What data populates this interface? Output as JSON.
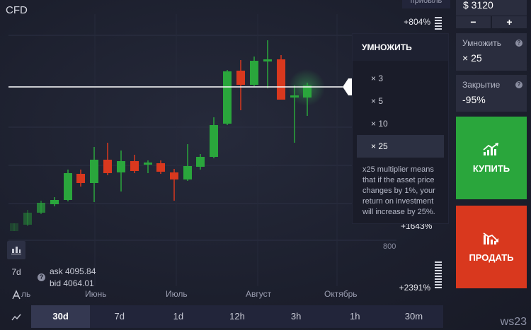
{
  "app_title": "CFD",
  "top_profit_label": "прибыль",
  "investment": {
    "value": "$ 3120",
    "minus": "−",
    "plus": "+"
  },
  "multiplier_field": {
    "label": "Умножить",
    "value": "× 25",
    "help": "?"
  },
  "close_field": {
    "label": "Закрытие",
    "value": "-95%",
    "help": "?"
  },
  "buy_button": {
    "label": "КУПИТЬ",
    "color": "#2aa63c"
  },
  "sell_button": {
    "label": "ПРОДАТЬ",
    "color": "#d9381e"
  },
  "multiplier_dropdown": {
    "title": "УМНОЖИТЬ",
    "options": [
      "× 3",
      "× 5",
      "× 10",
      "× 25"
    ],
    "selected": "× 25",
    "description": "x25 multiplier means that if the asset price changes by 1%, your return on investment will increase by 25%."
  },
  "scale_labels": {
    "top": "+804%",
    "middle": "+1643%",
    "bottom": "+2391%"
  },
  "grid_label": "800",
  "ask_bid": {
    "help": "?",
    "ask": "ask 4095.84",
    "bid": "bid 4064.01"
  },
  "left_tools": [
    {
      "name": "chart-type-icon",
      "label": ""
    },
    {
      "name": "period-7d",
      "label": "7d"
    },
    {
      "name": "drawing-icon",
      "label": ""
    },
    {
      "name": "indicator-icon",
      "label": ""
    }
  ],
  "x_axis": [
    "ль",
    "Июнь",
    "Июль",
    "Август",
    "Октябрь"
  ],
  "timeframes": [
    "30d",
    "7d",
    "1d",
    "12h",
    "3h",
    "1h",
    "30m"
  ],
  "active_timeframe": "30d",
  "watermark": "ws23",
  "colors": {
    "up": "#2aa63c",
    "down": "#d9381e",
    "background": "#1b1e2c"
  }
}
